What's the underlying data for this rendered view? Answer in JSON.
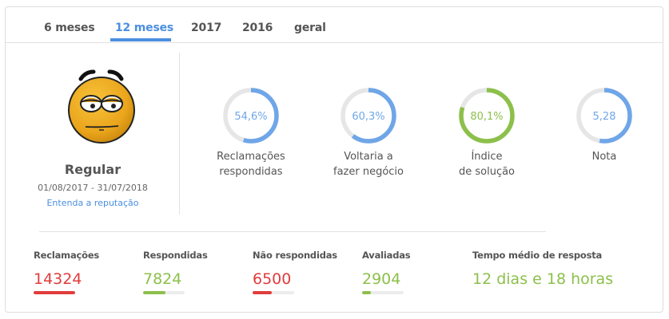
{
  "tabs": [
    {
      "label": "6 meses",
      "active": false
    },
    {
      "label": "12 meses",
      "active": true
    },
    {
      "label": "2017",
      "active": false
    },
    {
      "label": "2016",
      "active": false
    },
    {
      "label": "geral",
      "active": false
    }
  ],
  "reputation": {
    "icon": "neutral-bored-face-icon",
    "status": "Regular",
    "period": "01/08/2017 - 31/07/2018",
    "link": "Entenda a reputação"
  },
  "metrics": [
    {
      "value": "54,6%",
      "percent": 54.6,
      "label_line1": "Reclamações",
      "label_line2": "respondidas",
      "color": "#6fa6e8"
    },
    {
      "value": "60,3%",
      "percent": 60.3,
      "label_line1": "Voltaria a",
      "label_line2": "fazer negócio",
      "color": "#6fa6e8"
    },
    {
      "value": "80,1%",
      "percent": 80.1,
      "label_line1": "Índice",
      "label_line2": "de solução",
      "color": "#8cc04b"
    },
    {
      "value": "5,28",
      "percent": 52.8,
      "label_line1": "Nota",
      "label_line2": "",
      "color": "#6fa6e8"
    }
  ],
  "stats": [
    {
      "title": "Reclamações",
      "value": "14324",
      "bar_percent": 100,
      "color": "#e03c3c"
    },
    {
      "title": "Respondidas",
      "value": "7824",
      "bar_percent": 54.6,
      "color": "#8cc04b"
    },
    {
      "title": "Não respondidas",
      "value": "6500",
      "bar_percent": 45.4,
      "color": "#e03c3c"
    },
    {
      "title": "Avaliadas",
      "value": "2904",
      "bar_percent": 20.3,
      "color": "#8cc04b"
    },
    {
      "title": "Tempo médio de resposta",
      "value": "12 dias e 18 horas",
      "color": "#8cc04b"
    }
  ],
  "colors": {
    "accent_blue": "#4a8fe0",
    "ring_blue": "#6fa6e8",
    "green": "#8cc04b",
    "red": "#e03c3c",
    "ring_track": "#e6e6e6"
  }
}
